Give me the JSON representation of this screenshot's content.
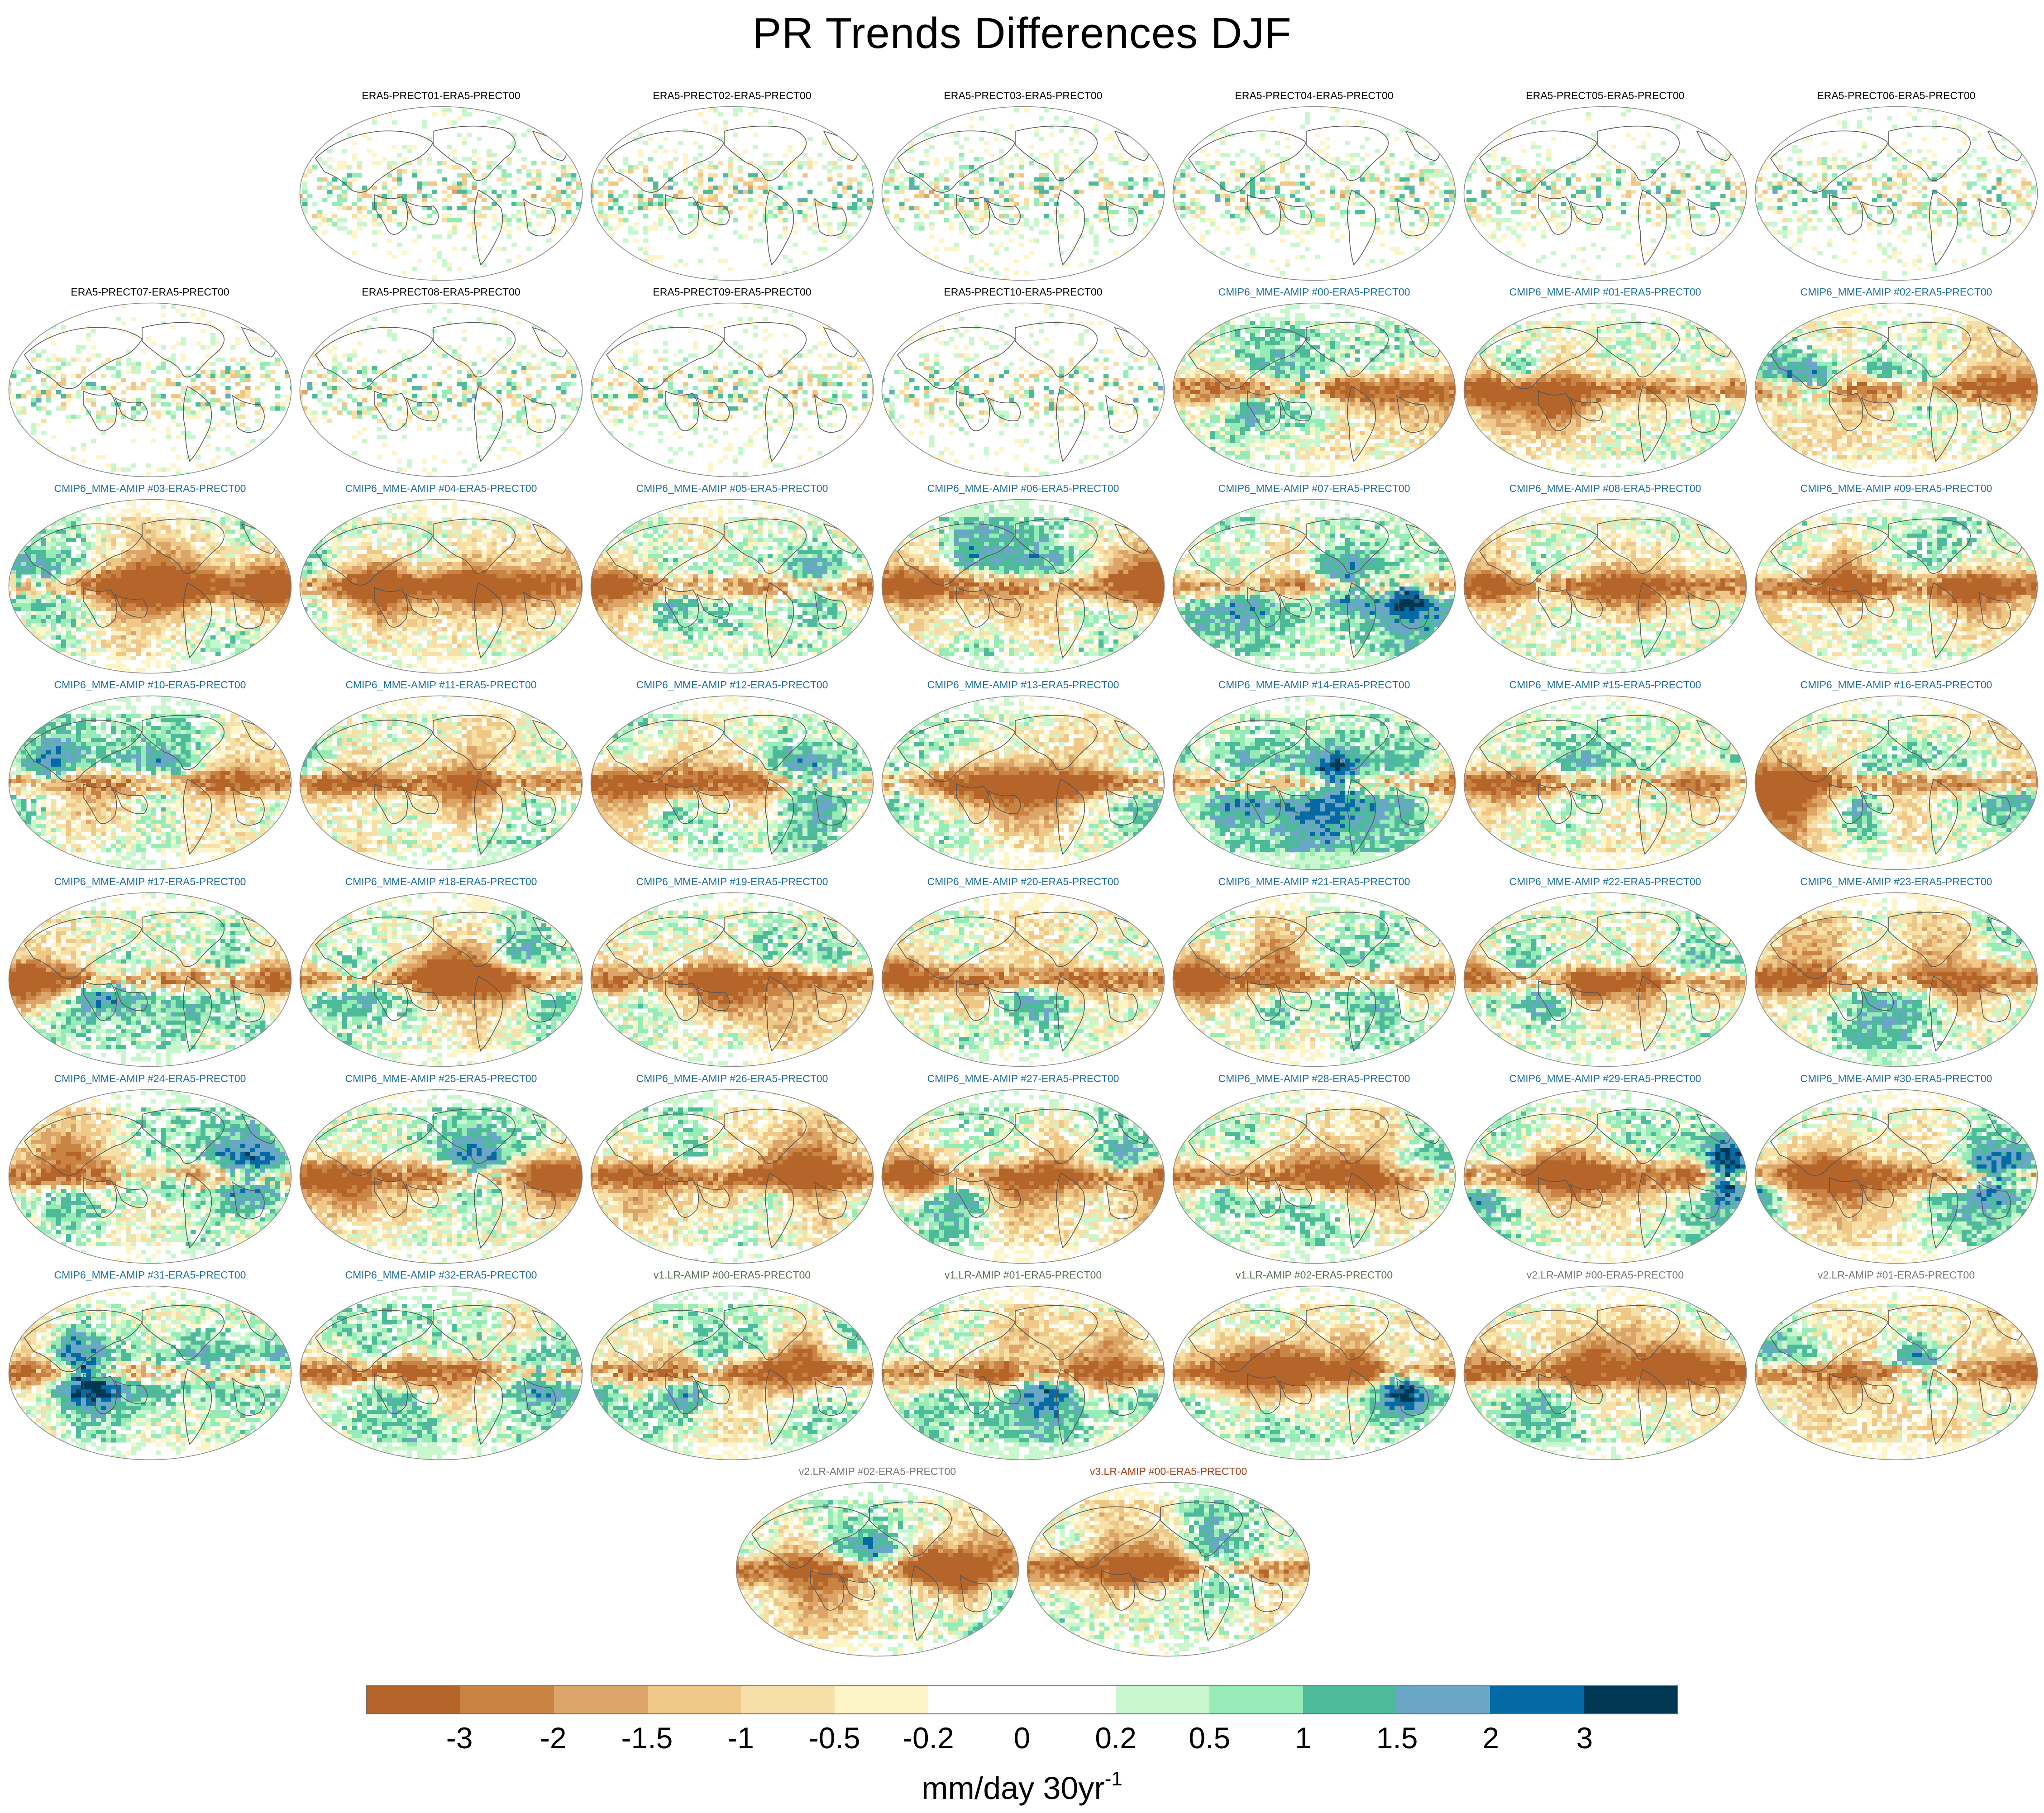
{
  "title": "PR Trends Differences DJF",
  "chart_data": {
    "type": "map_panel_grid",
    "title": "PR Trends Differences DJF",
    "panels": [
      {
        "label": "ERA5-PRECT01-ERA5-PRECT00",
        "group": "era5"
      },
      {
        "label": "ERA5-PRECT02-ERA5-PRECT00",
        "group": "era5"
      },
      {
        "label": "ERA5-PRECT03-ERA5-PRECT00",
        "group": "era5"
      },
      {
        "label": "ERA5-PRECT04-ERA5-PRECT00",
        "group": "era5"
      },
      {
        "label": "ERA5-PRECT05-ERA5-PRECT00",
        "group": "era5"
      },
      {
        "label": "ERA5-PRECT06-ERA5-PRECT00",
        "group": "era5"
      },
      {
        "label": "ERA5-PRECT07-ERA5-PRECT00",
        "group": "era5"
      },
      {
        "label": "ERA5-PRECT08-ERA5-PRECT00",
        "group": "era5"
      },
      {
        "label": "ERA5-PRECT09-ERA5-PRECT00",
        "group": "era5"
      },
      {
        "label": "ERA5-PRECT10-ERA5-PRECT00",
        "group": "era5"
      },
      {
        "label": "CMIP6_MME-AMIP  #00-ERA5-PRECT00",
        "group": "cmip6"
      },
      {
        "label": "CMIP6_MME-AMIP  #01-ERA5-PRECT00",
        "group": "cmip6"
      },
      {
        "label": "CMIP6_MME-AMIP  #02-ERA5-PRECT00",
        "group": "cmip6"
      },
      {
        "label": "CMIP6_MME-AMIP  #03-ERA5-PRECT00",
        "group": "cmip6"
      },
      {
        "label": "CMIP6_MME-AMIP  #04-ERA5-PRECT00",
        "group": "cmip6"
      },
      {
        "label": "CMIP6_MME-AMIP  #05-ERA5-PRECT00",
        "group": "cmip6"
      },
      {
        "label": "CMIP6_MME-AMIP  #06-ERA5-PRECT00",
        "group": "cmip6"
      },
      {
        "label": "CMIP6_MME-AMIP  #07-ERA5-PRECT00",
        "group": "cmip6"
      },
      {
        "label": "CMIP6_MME-AMIP  #08-ERA5-PRECT00",
        "group": "cmip6"
      },
      {
        "label": "CMIP6_MME-AMIP  #09-ERA5-PRECT00",
        "group": "cmip6"
      },
      {
        "label": "CMIP6_MME-AMIP  #10-ERA5-PRECT00",
        "group": "cmip6"
      },
      {
        "label": "CMIP6_MME-AMIP  #11-ERA5-PRECT00",
        "group": "cmip6"
      },
      {
        "label": "CMIP6_MME-AMIP  #12-ERA5-PRECT00",
        "group": "cmip6"
      },
      {
        "label": "CMIP6_MME-AMIP  #13-ERA5-PRECT00",
        "group": "cmip6"
      },
      {
        "label": "CMIP6_MME-AMIP  #14-ERA5-PRECT00",
        "group": "cmip6"
      },
      {
        "label": "CMIP6_MME-AMIP  #15-ERA5-PRECT00",
        "group": "cmip6"
      },
      {
        "label": "CMIP6_MME-AMIP  #16-ERA5-PRECT00",
        "group": "cmip6"
      },
      {
        "label": "CMIP6_MME-AMIP  #17-ERA5-PRECT00",
        "group": "cmip6"
      },
      {
        "label": "CMIP6_MME-AMIP  #18-ERA5-PRECT00",
        "group": "cmip6"
      },
      {
        "label": "CMIP6_MME-AMIP  #19-ERA5-PRECT00",
        "group": "cmip6"
      },
      {
        "label": "CMIP6_MME-AMIP  #20-ERA5-PRECT00",
        "group": "cmip6"
      },
      {
        "label": "CMIP6_MME-AMIP  #21-ERA5-PRECT00",
        "group": "cmip6"
      },
      {
        "label": "CMIP6_MME-AMIP  #22-ERA5-PRECT00",
        "group": "cmip6"
      },
      {
        "label": "CMIP6_MME-AMIP  #23-ERA5-PRECT00",
        "group": "cmip6"
      },
      {
        "label": "CMIP6_MME-AMIP  #24-ERA5-PRECT00",
        "group": "cmip6"
      },
      {
        "label": "CMIP6_MME-AMIP  #25-ERA5-PRECT00",
        "group": "cmip6"
      },
      {
        "label": "CMIP6_MME-AMIP  #26-ERA5-PRECT00",
        "group": "cmip6"
      },
      {
        "label": "CMIP6_MME-AMIP  #27-ERA5-PRECT00",
        "group": "cmip6"
      },
      {
        "label": "CMIP6_MME-AMIP  #28-ERA5-PRECT00",
        "group": "cmip6"
      },
      {
        "label": "CMIP6_MME-AMIP  #29-ERA5-PRECT00",
        "group": "cmip6"
      },
      {
        "label": "CMIP6_MME-AMIP  #30-ERA5-PRECT00",
        "group": "cmip6"
      },
      {
        "label": "CMIP6_MME-AMIP  #31-ERA5-PRECT00",
        "group": "cmip6"
      },
      {
        "label": "CMIP6_MME-AMIP  #32-ERA5-PRECT00",
        "group": "cmip6"
      },
      {
        "label": "v1.LR-AMIP  #00-ERA5-PRECT00",
        "group": "v1"
      },
      {
        "label": "v1.LR-AMIP  #01-ERA5-PRECT00",
        "group": "v1"
      },
      {
        "label": "v1.LR-AMIP  #02-ERA5-PRECT00",
        "group": "v1"
      },
      {
        "label": "v2.LR-AMIP  #00-ERA5-PRECT00",
        "group": "v2"
      },
      {
        "label": "v2.LR-AMIP  #01-ERA5-PRECT00",
        "group": "v2"
      },
      {
        "label": "v2.LR-AMIP  #02-ERA5-PRECT00",
        "group": "v2"
      },
      {
        "label": "v3.LR-AMIP  #00-ERA5-PRECT00",
        "group": "v3"
      }
    ],
    "group_colors": {
      "era5": "#000000",
      "cmip6": "#1f6f9a",
      "v1": "#5a6e50",
      "v2": "#777777",
      "v3": "#a0421a"
    },
    "colorbar": {
      "colors": [
        "#b5652a",
        "#c98443",
        "#dba468",
        "#efc888",
        "#f6e0a8",
        "#fdf5c8",
        "#ffffff",
        "#ffffff",
        "#c9f7cd",
        "#97ebb6",
        "#4dbb9a",
        "#6aa7c6",
        "#046aa6",
        "#003854"
      ],
      "tick_labels": [
        "-3",
        "-2",
        "-1.5",
        "-1",
        "-0.5",
        "-0.2",
        "0",
        "0.2",
        "0.5",
        "1",
        "1.5",
        "2",
        "3"
      ],
      "units_label": "mm/day 30yr",
      "units_superscript": "-1"
    }
  }
}
